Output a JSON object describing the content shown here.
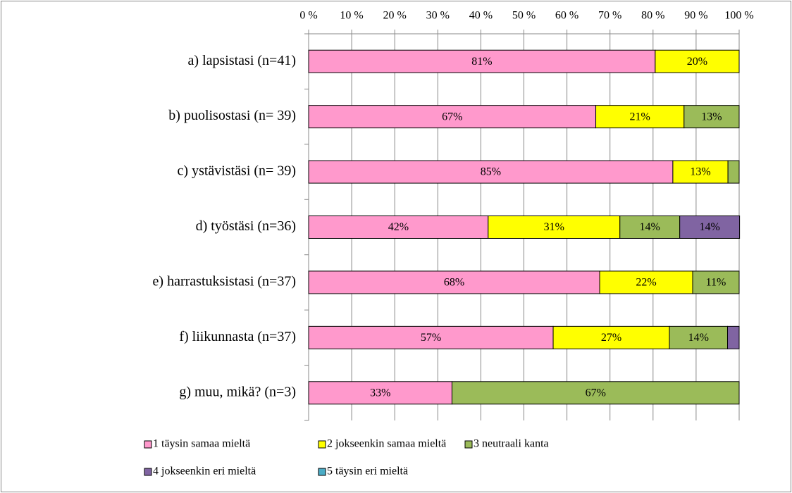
{
  "chart_data": {
    "type": "stacked-bar-horizontal",
    "categories": [
      "a) lapsistasi (n=41)",
      "b) puolisostasi (n= 39)",
      "c) ystävistäsi (n= 39)",
      "d) työstäsi (n=36)",
      "e) harrastuksistasi (n=37)",
      "f) liikunnasta (n=37)",
      "g) muu, mikä? (n=3)"
    ],
    "series": [
      {
        "name": "1 täysin samaa mieltä",
        "color": "#ff99cc",
        "values": [
          80.5,
          66.7,
          84.6,
          41.7,
          67.6,
          56.8,
          33.3
        ],
        "value_labels": [
          "81%",
          "67%",
          "85%",
          "42%",
          "68%",
          "57%",
          "33%"
        ]
      },
      {
        "name": "2 jokseenkin samaa mieltä",
        "color": "#ffff00",
        "values": [
          19.5,
          20.5,
          12.8,
          30.6,
          21.6,
          27.0,
          null
        ],
        "value_labels": [
          "20%",
          "21%",
          "13%",
          "31%",
          "22%",
          "27%",
          null
        ]
      },
      {
        "name": "3 neutraali kanta",
        "color": "#9bbb59",
        "values": [
          null,
          12.8,
          2.6,
          13.9,
          10.8,
          13.5,
          66.7
        ],
        "value_labels": [
          null,
          "13%",
          null,
          "14%",
          "11%",
          "14%",
          "67%"
        ]
      },
      {
        "name": "4 jokseenkin eri mieltä",
        "color": "#8064a2",
        "values": [
          null,
          null,
          null,
          13.9,
          null,
          2.7,
          null
        ],
        "value_labels": [
          null,
          null,
          null,
          "14%",
          null,
          null,
          null
        ]
      },
      {
        "name": "5 täysin eri mieltä",
        "color": "#4bacc6",
        "values": [
          null,
          null,
          null,
          null,
          null,
          null,
          null
        ],
        "value_labels": [
          null,
          null,
          null,
          null,
          null,
          null,
          null
        ]
      }
    ],
    "xlim": [
      0,
      100
    ],
    "xticks": [
      {
        "value": 0,
        "label": "0 %"
      },
      {
        "value": 10,
        "label": "10 %"
      },
      {
        "value": 20,
        "label": "20 %"
      },
      {
        "value": 30,
        "label": "30 %"
      },
      {
        "value": 40,
        "label": "40 %"
      },
      {
        "value": 50,
        "label": "50 %"
      },
      {
        "value": 60,
        "label": "60 %"
      },
      {
        "value": 70,
        "label": "70 %"
      },
      {
        "value": 80,
        "label": "80 %"
      },
      {
        "value": 90,
        "label": "90 %"
      },
      {
        "value": 100,
        "label": "100 %"
      }
    ],
    "grid": true
  }
}
